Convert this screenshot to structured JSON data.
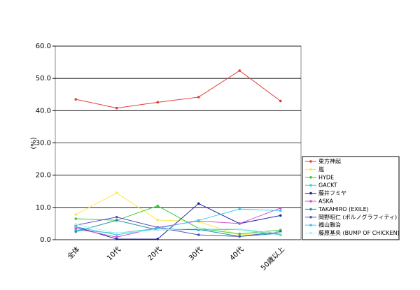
{
  "chart_data": {
    "type": "line",
    "y_label": "(%)",
    "categories": [
      "全体",
      "10代",
      "20代",
      "30代",
      "40代",
      "50歳以上"
    ],
    "ylim": [
      0,
      60
    ],
    "yticks": [
      {
        "value": 0,
        "label": "0.0"
      },
      {
        "value": 10,
        "label": "10.0"
      },
      {
        "value": 20,
        "label": "20.0"
      },
      {
        "value": 30,
        "label": "30.0"
      },
      {
        "value": 40,
        "label": "40.0"
      },
      {
        "value": 50,
        "label": "50.0"
      },
      {
        "value": 60,
        "label": "60.0"
      }
    ],
    "grid": true,
    "legend": "right",
    "series": [
      {
        "name": "東方神起",
        "color": "#e0403a",
        "values": [
          43.5,
          40.8,
          42.6,
          44.2,
          52.4,
          43.0
        ]
      },
      {
        "name": "嵐",
        "color": "#ffe84a",
        "values": [
          7.8,
          14.5,
          6.1,
          5.6,
          1.5,
          2.4
        ]
      },
      {
        "name": "HYDE",
        "color": "#3cc83c",
        "values": [
          6.5,
          6.0,
          10.5,
          3.5,
          1.8,
          3.0
        ]
      },
      {
        "name": "GACKT",
        "color": "#3ad8c8",
        "values": [
          3.0,
          2.0,
          3.5,
          3.0,
          3.2,
          1.5
        ]
      },
      {
        "name": "藤井フミヤ",
        "color": "#2020a0",
        "values": [
          4.0,
          0.2,
          0.2,
          11.2,
          5.0,
          7.5
        ]
      },
      {
        "name": "ASKA",
        "color": "#d050d0",
        "values": [
          3.5,
          0.8,
          3.8,
          5.8,
          5.0,
          9.8
        ]
      },
      {
        "name": "TAKAHIRO (EXILE)",
        "color": "#2090a0",
        "values": [
          2.5,
          6.0,
          3.0,
          3.2,
          1.0,
          2.0
        ]
      },
      {
        "name": "岡野昭仁 (ポルノグラフィティ)",
        "color": "#5050c0",
        "values": [
          4.5,
          7.0,
          3.8,
          1.5,
          1.0,
          2.5
        ]
      },
      {
        "name": "福山雅治",
        "color": "#40c8f0",
        "values": [
          4.0,
          1.5,
          3.5,
          6.0,
          9.5,
          9.0
        ]
      },
      {
        "name": "藤原基央 (BUMP OF CHICKEN)",
        "color": "#b8f0f0",
        "values": [
          4.8,
          2.0,
          3.0,
          3.5,
          3.3,
          2.0
        ]
      }
    ]
  }
}
